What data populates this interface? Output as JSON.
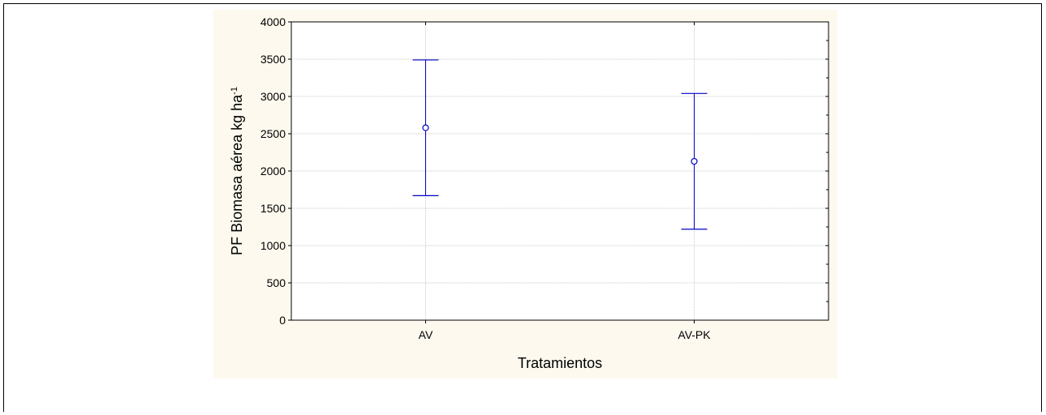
{
  "colors": {
    "panel_background": "#fdf9ee",
    "plot_background": "#ffffff",
    "series": "#0000c0",
    "grid": "#c8c8c8",
    "axis": "#000000"
  },
  "chart_data": {
    "type": "errorbar",
    "title": "",
    "xlabel": "Tratamientos",
    "ylabel": "PF Biomasa aérea kg ha",
    "ylabel_superscript": "-1",
    "ylim": [
      0,
      4000
    ],
    "yticks": [
      0,
      500,
      1000,
      1500,
      2000,
      2500,
      3000,
      3500,
      4000
    ],
    "grid": true,
    "categories": [
      "AV",
      "AV-PK"
    ],
    "series": [
      {
        "marker": "open-circle",
        "values": [
          2580,
          2130
        ],
        "lower": [
          1670,
          1220
        ],
        "upper": [
          3490,
          3040
        ]
      }
    ]
  }
}
